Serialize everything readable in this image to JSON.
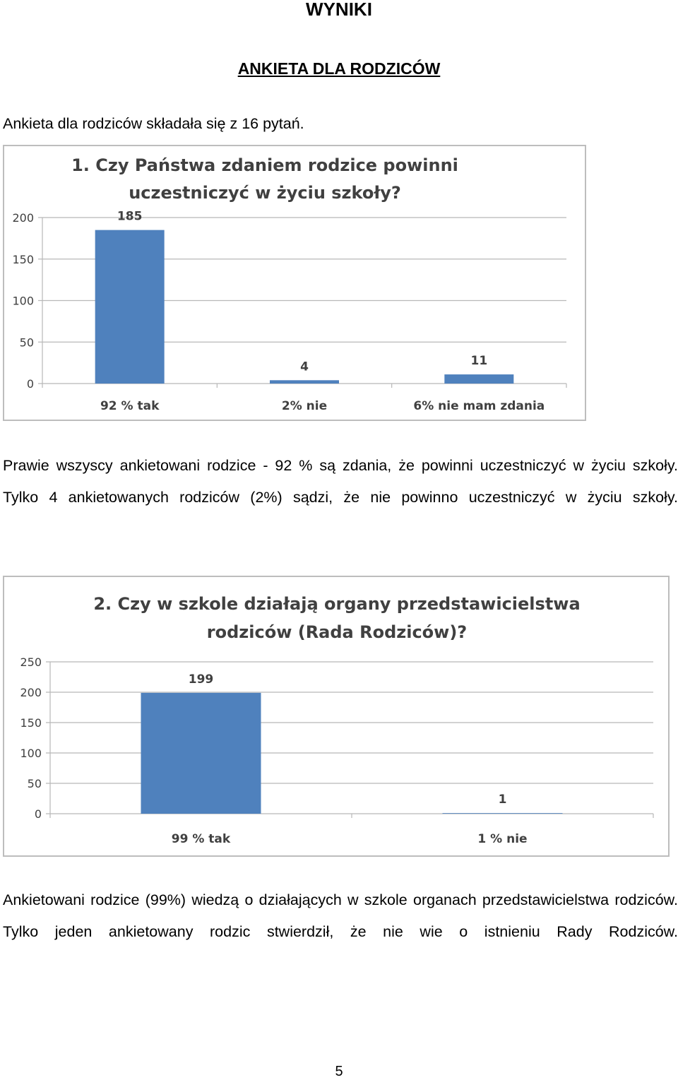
{
  "heading": "WYNIKI",
  "subheading": "ANKIETA DLA RODZICÓW",
  "intro": "Ankieta dla rodziców składała się z 16 pytań.",
  "paragraph1": "Prawie wszyscy ankietowani rodzice - 92 % są zdania, że powinni uczestniczyć w życiu szkoły. Tylko 4 ankietowanych rodziców (2%) sądzi, że nie powinno uczestniczyć w życiu szkoły.",
  "paragraph2": "Ankietowani rodzice (99%) wiedzą o działających w szkole organach przedstawicielstwa rodziców. Tylko jeden ankietowany rodzic stwierdził, że nie wie o istnieniu Rady Rodziców.",
  "page_number": "5",
  "colors": {
    "bar": "#4f81bd",
    "grid": "#b8b8b8",
    "text": "#404040"
  },
  "chart_data": [
    {
      "type": "bar",
      "title_lines": [
        "1. Czy Państwa zdaniem rodzice powinni",
        "uczestniczyć w życiu szkoły?"
      ],
      "categories": [
        "92 % tak",
        "2% nie",
        "6% nie mam zdania"
      ],
      "values": [
        185,
        4,
        11
      ],
      "data_labels": [
        "185",
        "4",
        "11"
      ],
      "yticks": [
        "0",
        "50",
        "100",
        "150",
        "200"
      ],
      "ylim": [
        0,
        200
      ],
      "grid": true,
      "legend": "none"
    },
    {
      "type": "bar",
      "title_lines": [
        "2. Czy w szkole działają organy przedstawicielstwa",
        "rodziców (Rada Rodziców)?"
      ],
      "categories": [
        "99 % tak",
        "1 % nie"
      ],
      "values": [
        199,
        1
      ],
      "data_labels": [
        "199",
        "1"
      ],
      "yticks": [
        "0",
        "50",
        "100",
        "150",
        "200",
        "250"
      ],
      "ylim": [
        0,
        250
      ],
      "grid": true,
      "legend": "none"
    }
  ]
}
